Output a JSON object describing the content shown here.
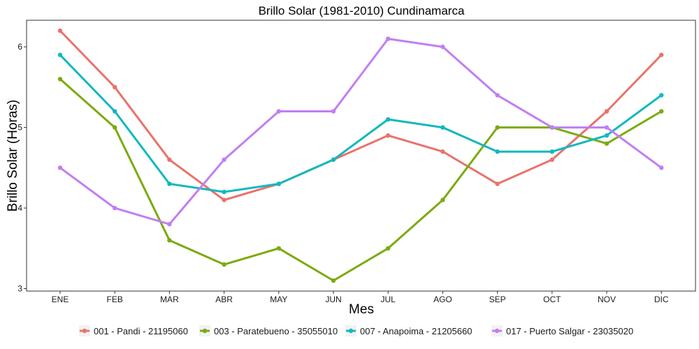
{
  "chart_data": {
    "type": "line",
    "title": "Brillo Solar (1981-2010)  Cundinamarca",
    "xlabel": "Mes",
    "ylabel": "Brillo Solar (Horas)",
    "categories": [
      "ENE",
      "FEB",
      "MAR",
      "ABR",
      "MAY",
      "JUN",
      "JUL",
      "AGO",
      "SEP",
      "OCT",
      "NOV",
      "DIC"
    ],
    "yticks": [
      3,
      4,
      5,
      6
    ],
    "ylim": [
      2.97,
      6.33
    ],
    "grid": false,
    "legend_position": "bottom",
    "series": [
      {
        "name": "001 - Pandi - 21195060",
        "color": "#e8736c",
        "values": [
          6.2,
          5.5,
          4.6,
          4.1,
          4.3,
          4.6,
          4.9,
          4.7,
          4.3,
          4.6,
          5.2,
          5.9
        ]
      },
      {
        "name": "003 - Paratebueno - 35055010",
        "color": "#7caa0f",
        "values": [
          5.6,
          5.0,
          3.6,
          3.3,
          3.5,
          3.1,
          3.5,
          4.1,
          5.0,
          5.0,
          4.8,
          5.2
        ]
      },
      {
        "name": "007 - Anapoima - 21205660",
        "color": "#13b8bd",
        "values": [
          5.9,
          5.2,
          4.3,
          4.2,
          4.3,
          4.6,
          5.1,
          5.0,
          4.7,
          4.7,
          4.9,
          5.4
        ]
      },
      {
        "name": "017 - Puerto Salgar - 23035020",
        "color": "#c27ef2",
        "values": [
          4.5,
          4.0,
          3.8,
          4.6,
          5.2,
          5.2,
          6.1,
          6.0,
          5.4,
          5.0,
          5.0,
          4.5
        ]
      }
    ]
  }
}
